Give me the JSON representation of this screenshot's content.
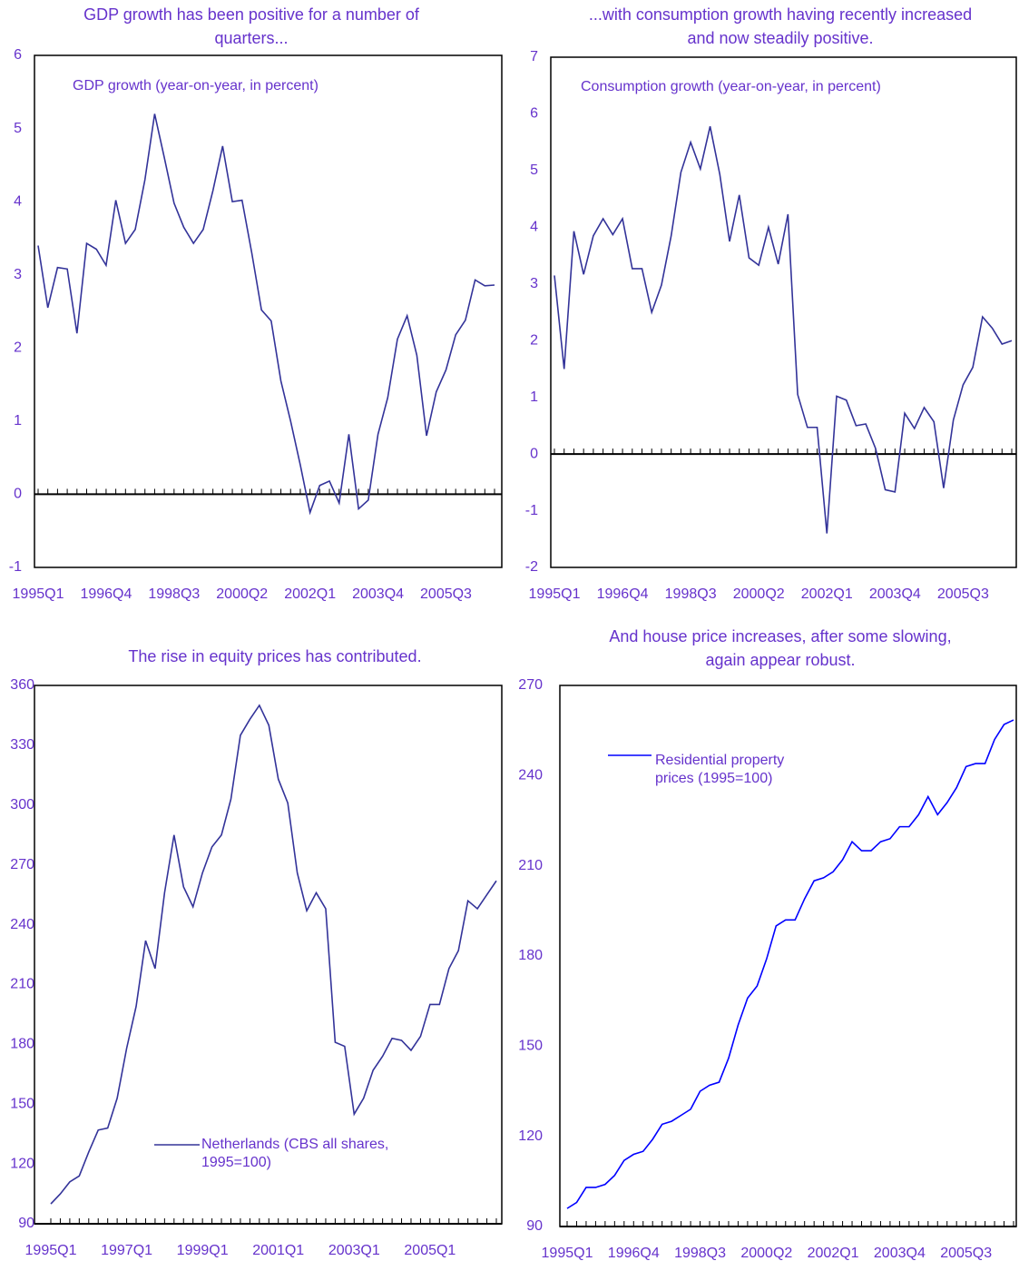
{
  "chart_data": [
    {
      "type": "line",
      "title": "GDP growth has been positive for a number of quarters...",
      "categories": [
        "1995Q1",
        null,
        null,
        null,
        null,
        null,
        null,
        "1996Q4",
        null,
        null,
        null,
        null,
        null,
        null,
        "1998Q3",
        null,
        null,
        null,
        null,
        null,
        null,
        "2000Q2",
        null,
        null,
        null,
        null,
        null,
        null,
        "2002Q1",
        null,
        null,
        null,
        null,
        null,
        null,
        "2003Q4",
        null,
        null,
        null,
        null,
        null,
        null,
        "2005Q3",
        null,
        null,
        null,
        null,
        null
      ],
      "series": [
        {
          "name": "GDP growth (year-on-year, in percent)",
          "color": "#333399",
          "values": [
            3.4,
            2.55,
            3.1,
            3.08,
            2.2,
            3.43,
            3.35,
            3.13,
            4.02,
            3.43,
            3.62,
            4.3,
            5.2,
            4.6,
            3.98,
            3.65,
            3.43,
            3.62,
            4.15,
            4.76,
            4.0,
            4.02,
            3.3,
            2.52,
            2.37,
            1.55,
            1.0,
            0.4,
            -0.25,
            0.12,
            0.18,
            -0.12,
            0.82,
            -0.2,
            -0.08,
            0.82,
            1.32,
            2.12,
            2.44,
            1.9,
            0.8,
            1.4,
            1.7,
            2.18,
            2.38,
            2.93,
            2.85,
            2.86
          ]
        }
      ],
      "ylim": [
        -1,
        6
      ],
      "yticks": [
        -1,
        0,
        1,
        2,
        3,
        4,
        5,
        6
      ],
      "legend_swatch": false
    },
    {
      "type": "line",
      "title": "...with consumption growth having recently increased and now steadily positive.",
      "categories": [
        "1995Q1",
        null,
        null,
        null,
        null,
        null,
        null,
        "1996Q4",
        null,
        null,
        null,
        null,
        null,
        null,
        "1998Q3",
        null,
        null,
        null,
        null,
        null,
        null,
        "2000Q2",
        null,
        null,
        null,
        null,
        null,
        null,
        "2002Q1",
        null,
        null,
        null,
        null,
        null,
        null,
        "2003Q4",
        null,
        null,
        null,
        null,
        null,
        null,
        "2005Q3",
        null,
        null,
        null,
        null,
        null
      ],
      "series": [
        {
          "name": "Consumption growth (year-on-year, in percent)",
          "color": "#333399",
          "values": [
            3.15,
            1.5,
            3.93,
            3.17,
            3.85,
            4.15,
            3.87,
            4.15,
            3.27,
            3.27,
            2.5,
            2.98,
            3.85,
            4.97,
            5.5,
            5.03,
            5.78,
            4.93,
            3.75,
            4.57,
            3.46,
            3.33,
            4.0,
            3.35,
            4.23,
            1.05,
            0.47,
            0.47,
            -1.4,
            1.02,
            0.95,
            0.5,
            0.53,
            0.1,
            -0.63,
            -0.67,
            0.72,
            0.45,
            0.82,
            0.57,
            -0.6,
            0.6,
            1.22,
            1.53,
            2.42,
            2.22,
            1.94,
            2.0
          ]
        }
      ],
      "ylim": [
        -2,
        7
      ],
      "yticks": [
        -2,
        -1,
        0,
        1,
        2,
        3,
        4,
        5,
        6,
        7
      ],
      "legend_swatch": false
    },
    {
      "type": "line",
      "title": "The rise in equity prices has contributed.",
      "categories": [
        "1995Q1",
        null,
        null,
        null,
        null,
        null,
        null,
        null,
        "1997Q1",
        null,
        null,
        null,
        null,
        null,
        null,
        null,
        "1999Q1",
        null,
        null,
        null,
        null,
        null,
        null,
        null,
        "2001Q1",
        null,
        null,
        null,
        null,
        null,
        null,
        null,
        "2003Q1",
        null,
        null,
        null,
        null,
        null,
        null,
        null,
        "2005Q1",
        null,
        null,
        null,
        null,
        null,
        null,
        null
      ],
      "series": [
        {
          "name": "Netherlands (CBS all shares, 1995=100)",
          "color": "#333399",
          "values": [
            100,
            105,
            111,
            114,
            126,
            137,
            138,
            153,
            178,
            199,
            232,
            218,
            256,
            285,
            259,
            249,
            266,
            279,
            285,
            303,
            335,
            343,
            350,
            340,
            313,
            301,
            266,
            247,
            256,
            248,
            181,
            179,
            145,
            153,
            167,
            174,
            183,
            182,
            177,
            184,
            200,
            200,
            218,
            227,
            252,
            248,
            255,
            262
          ]
        }
      ],
      "ylim": [
        90,
        360
      ],
      "yticks": [
        90,
        120,
        150,
        180,
        210,
        240,
        270,
        300,
        330,
        360
      ],
      "legend_swatch": true
    },
    {
      "type": "line",
      "title": "And house price increases, after some slowing, again appear robust.",
      "categories": [
        "1995Q1",
        null,
        null,
        null,
        null,
        null,
        null,
        "1996Q4",
        null,
        null,
        null,
        null,
        null,
        null,
        "1998Q3",
        null,
        null,
        null,
        null,
        null,
        null,
        "2000Q2",
        null,
        null,
        null,
        null,
        null,
        null,
        "2002Q1",
        null,
        null,
        null,
        null,
        null,
        null,
        "2003Q4",
        null,
        null,
        null,
        null,
        null,
        null,
        "2005Q3",
        null,
        null,
        null,
        null,
        null
      ],
      "series": [
        {
          "name": "Residential property prices (1995=100)",
          "color": "#0000ff",
          "values": [
            96,
            98,
            103,
            103,
            104,
            107,
            112,
            114,
            115,
            119,
            124,
            125,
            127,
            129,
            135,
            137,
            138,
            146,
            157,
            166,
            170,
            179,
            190,
            192,
            192,
            199,
            205,
            206,
            208,
            212,
            218,
            215,
            215,
            218,
            219,
            223,
            223,
            227,
            233,
            227,
            231,
            236,
            243,
            244,
            244,
            252,
            257,
            258.5
          ]
        }
      ],
      "ylim": [
        90,
        270
      ],
      "yticks": [
        90,
        120,
        150,
        180,
        210,
        240,
        270
      ],
      "legend_swatch": true
    }
  ]
}
